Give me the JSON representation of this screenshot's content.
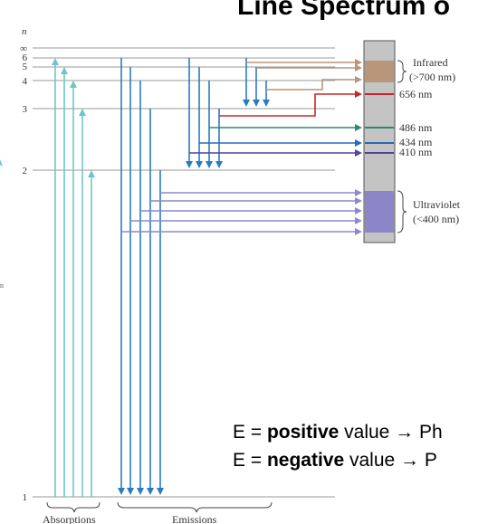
{
  "title": "Line Spectrum o",
  "axis_symbol": "n",
  "levels": [
    {
      "label": "∞"
    },
    {
      "label": "6"
    },
    {
      "label": "5"
    },
    {
      "label": "4"
    },
    {
      "label": "3"
    },
    {
      "label": "2"
    },
    {
      "label": "1"
    }
  ],
  "spectrum_labels": {
    "infrared_name": "Infrared",
    "infrared_range": "(>700 nm)",
    "line_656": "656 nm",
    "line_486": "486 nm",
    "line_434": "434 nm",
    "line_410": "410 nm",
    "uv_name": "Ultraviolet",
    "uv_range": "(<400 nm)"
  },
  "bottom_labels": {
    "absorptions": "Absorptions",
    "emissions": "Emissions"
  },
  "left_stub": "n",
  "equations": [
    {
      "prefix": "E = ",
      "bold": "positive",
      "suffix": " value → Ph"
    },
    {
      "prefix": "E = ",
      "bold": "negative",
      "suffix": " value → P"
    }
  ],
  "colors": {
    "absorption": "#6cc6c8",
    "emission": "#2a7cc0",
    "infrared_band": "#b9957a",
    "red_line": "#c8262a",
    "green_line": "#2e8a6e",
    "blue_line": "#2a68b8",
    "violet_line": "#55449a",
    "uv_band": "#8c86c8",
    "uv_arrow": "#8e88cc",
    "level_line": "#9a9a9a",
    "spectrum_bg": "#c4c4c4"
  }
}
